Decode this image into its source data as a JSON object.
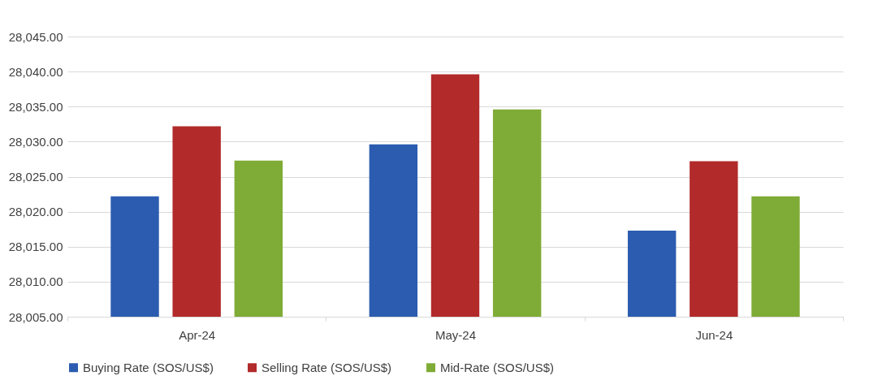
{
  "chart_data": {
    "type": "bar",
    "categories": [
      "Apr-24",
      "May-24",
      "Jun-24"
    ],
    "series": [
      {
        "name": "Buying Rate (SOS/US$)",
        "color": "#2b5cb0",
        "values": [
          28022.2,
          28029.6,
          28017.3
        ]
      },
      {
        "name": "Selling Rate (SOS/US$)",
        "color": "#b22a2a",
        "values": [
          28032.2,
          28039.6,
          28027.2
        ]
      },
      {
        "name": "Mid-Rate (SOS/US$)",
        "color": "#7fac36",
        "values": [
          28027.3,
          28034.6,
          28022.2
        ]
      }
    ],
    "ylim": [
      28005,
      28045
    ],
    "yticks": [
      {
        "value": 28005,
        "label": "28,005.00"
      },
      {
        "value": 28010,
        "label": "28,010.00"
      },
      {
        "value": 28015,
        "label": "28,015.00"
      },
      {
        "value": 28020,
        "label": "28,020.00"
      },
      {
        "value": 28025,
        "label": "28,025.00"
      },
      {
        "value": 28030,
        "label": "28,030.00"
      },
      {
        "value": 28035,
        "label": "28,035.00"
      },
      {
        "value": 28040,
        "label": "28,040.00"
      },
      {
        "value": 28045,
        "label": "28,045.00"
      }
    ],
    "grid": "y",
    "legend": "bottom"
  }
}
